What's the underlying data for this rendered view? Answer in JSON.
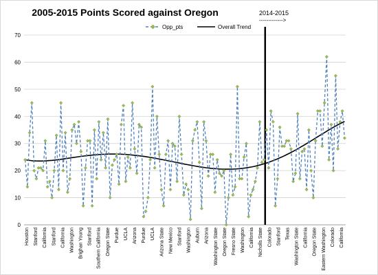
{
  "chart_data": {
    "type": "line",
    "title": "2005-2015 Points Scored against Oregon",
    "annotation": {
      "text": "2014-2015",
      "arrow_text": "------------->"
    },
    "ylim": [
      0,
      70
    ],
    "yticks": [
      0,
      10,
      20,
      30,
      40,
      50,
      60,
      70
    ],
    "grid": true,
    "legend": "top",
    "x_tick_labels": [
      "Houston",
      "Stanford",
      "California",
      "Stanford",
      "California",
      "Washington",
      "Brighan Young",
      "Stanford",
      "Southern California",
      "Oregon State",
      "Purdue",
      "UCLA",
      "Arizona",
      "Purdue",
      "UCLA",
      "Arizona State",
      "New Mexico",
      "Stanford",
      "Washington",
      "Auburn",
      "Arizona",
      "Washington State",
      "Oregon State",
      "Fresno State",
      "Washington",
      "California",
      "Nicholls State",
      "Colorado",
      "Stanford",
      "Texas",
      "Washington State",
      "California",
      "Oregon State",
      "Eastern Washington",
      "Colorado",
      "California"
    ],
    "series": [
      {
        "name": "Opp_pts",
        "style": "dashed-markers",
        "color": "#4f81bd",
        "marker_color": "#9bbb59",
        "values": [
          24,
          14,
          34,
          45,
          20,
          17,
          21,
          21,
          20,
          31,
          14,
          16,
          10,
          20,
          33,
          13,
          45,
          20,
          34,
          12,
          17,
          35,
          37,
          30,
          38,
          27,
          7,
          21,
          31,
          31,
          7,
          35,
          17,
          38,
          24,
          34,
          21,
          39,
          10,
          22,
          24,
          26,
          15,
          37,
          44,
          16,
          25,
          21,
          45,
          28,
          19,
          37,
          36,
          3,
          5,
          10,
          24,
          51,
          21,
          40,
          26,
          13,
          7,
          26,
          31,
          13,
          30,
          29,
          16,
          40,
          26,
          11,
          15,
          13,
          2,
          31,
          35,
          38,
          23,
          6,
          38,
          31,
          18,
          26,
          26,
          12,
          24,
          19,
          18,
          20,
          0,
          10,
          26,
          11,
          14,
          51,
          17,
          17,
          25,
          30,
          3,
          11,
          13,
          16,
          21,
          38,
          23,
          24,
          35,
          21,
          42,
          38,
          7,
          17,
          36,
          29,
          29,
          31,
          31,
          28,
          16,
          19,
          41,
          17,
          27,
          28,
          13,
          35,
          20,
          10,
          31,
          42,
          42,
          29,
          45,
          62,
          24,
          37,
          20,
          55,
          28,
          38,
          42,
          32
        ]
      },
      {
        "name": "Overall Trend",
        "style": "solid",
        "color": "#000000"
      }
    ],
    "divider_after_label": "Nicholls State"
  }
}
